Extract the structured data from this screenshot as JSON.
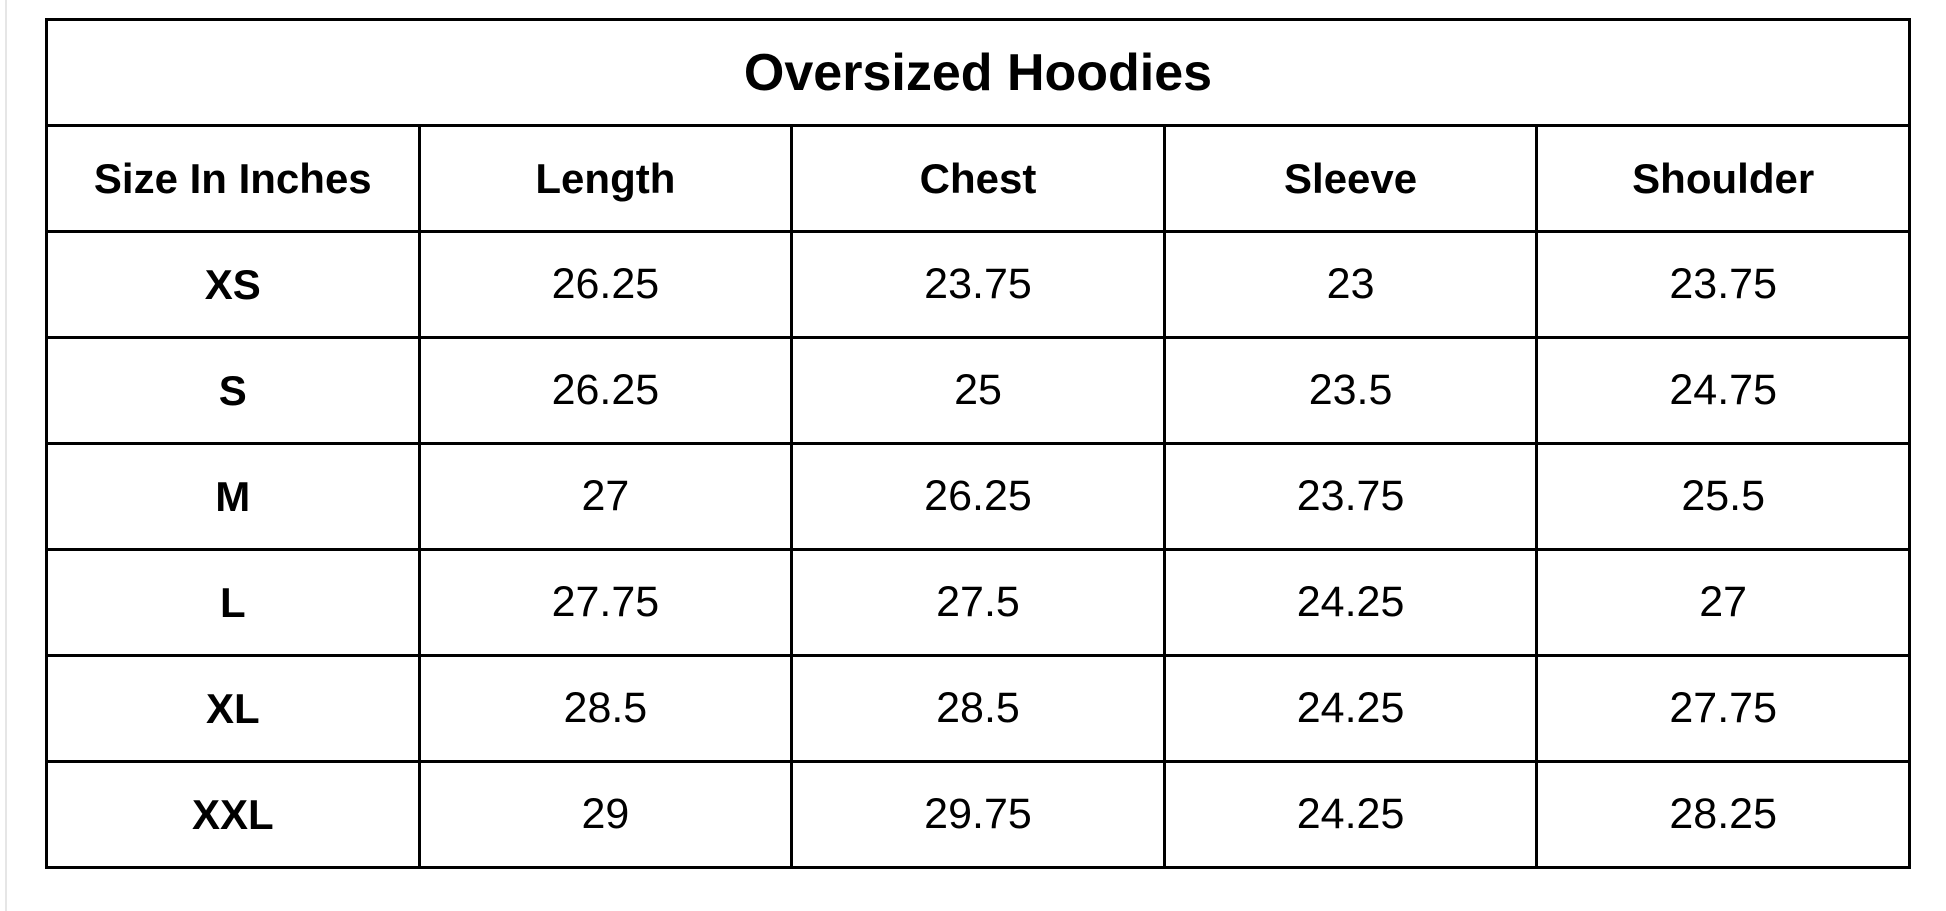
{
  "title": "Oversized Hoodies",
  "headers": [
    "Size In Inches",
    "Length",
    "Chest",
    "Sleeve",
    "Shoulder"
  ],
  "rows": [
    [
      "XS",
      "26.25",
      "23.75",
      "23",
      "23.75"
    ],
    [
      "S",
      "26.25",
      "25",
      "23.5",
      "24.75"
    ],
    [
      "M",
      "27",
      "26.25",
      "23.75",
      "25.5"
    ],
    [
      "L",
      "27.75",
      "27.5",
      "24.25",
      "27"
    ],
    [
      "XL",
      "28.5",
      "28.5",
      "24.25",
      "27.75"
    ],
    [
      "XXL",
      "29",
      "29.75",
      "24.25",
      "28.25"
    ]
  ]
}
